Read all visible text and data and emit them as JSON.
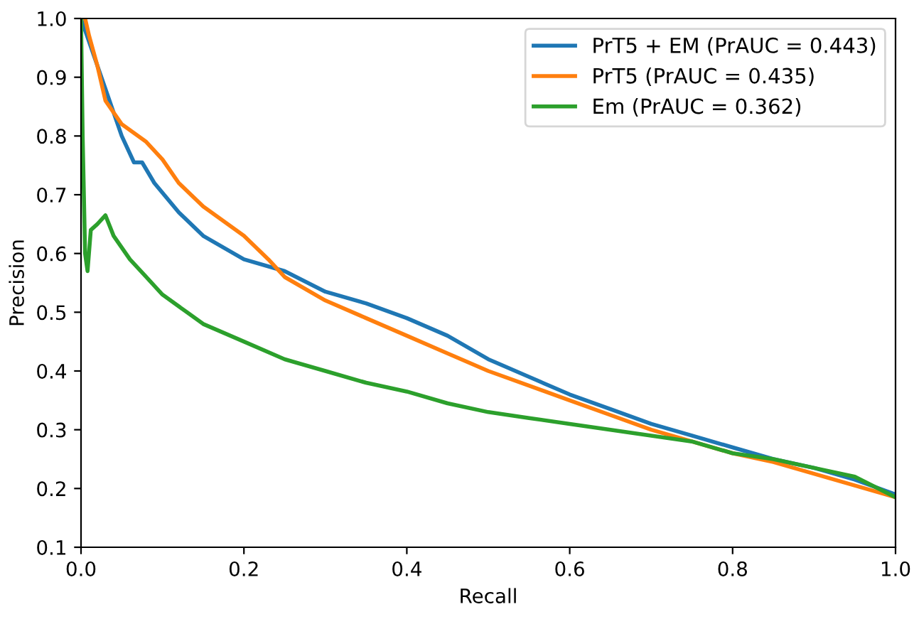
{
  "chart_data": {
    "type": "line",
    "xlabel": "Recall",
    "ylabel": "Precision",
    "xlim": [
      0.0,
      1.0
    ],
    "ylim": [
      0.1,
      1.0
    ],
    "xticks": [
      {
        "value": 0,
        "label": "0.0"
      },
      0.2,
      0.4,
      0.6,
      0.8,
      {
        "value": 1,
        "label": "1.0"
      }
    ],
    "yticks": [
      0.1,
      0.2,
      0.3,
      0.4,
      0.5,
      0.6,
      0.7,
      0.8,
      0.9,
      {
        "value": 1,
        "label": "1.0"
      }
    ],
    "legend": "top right",
    "grid": false,
    "series": [
      {
        "name": "PrT5 + EM (PrAUC = 0.443)",
        "color": "#1f77b4",
        "x": [
          0,
          0.01,
          0.03,
          0.05,
          0.065,
          0.075,
          0.09,
          0.12,
          0.15,
          0.2,
          0.25,
          0.3,
          0.35,
          0.4,
          0.45,
          0.5,
          0.55,
          0.6,
          0.65,
          0.7,
          0.75,
          0.8,
          0.85,
          0.9,
          0.95,
          1.0
        ],
        "values": [
          1.0,
          0.96,
          0.88,
          0.8,
          0.755,
          0.755,
          0.72,
          0.67,
          0.63,
          0.59,
          0.57,
          0.535,
          0.515,
          0.49,
          0.46,
          0.42,
          0.39,
          0.36,
          0.335,
          0.31,
          0.29,
          0.27,
          0.25,
          0.235,
          0.215,
          0.19
        ]
      },
      {
        "name": "PrT5 (PrAUC = 0.435)",
        "color": "#ff7f0e",
        "x": [
          0.005,
          0.01,
          0.02,
          0.03,
          0.05,
          0.08,
          0.1,
          0.12,
          0.15,
          0.2,
          0.23,
          0.25,
          0.3,
          0.35,
          0.4,
          0.45,
          0.5,
          0.55,
          0.6,
          0.65,
          0.7,
          0.75,
          0.8,
          0.85,
          0.9,
          0.95,
          1.0
        ],
        "values": [
          1.0,
          0.97,
          0.92,
          0.86,
          0.82,
          0.79,
          0.76,
          0.72,
          0.68,
          0.63,
          0.59,
          0.56,
          0.52,
          0.49,
          0.46,
          0.43,
          0.4,
          0.375,
          0.35,
          0.325,
          0.3,
          0.28,
          0.26,
          0.245,
          0.225,
          0.205,
          0.185
        ]
      },
      {
        "name": "Em (PrAUC = 0.362)",
        "color": "#2ca02c",
        "x": [
          0,
          0.002,
          0.005,
          0.008,
          0.012,
          0.02,
          0.03,
          0.04,
          0.06,
          0.08,
          0.1,
          0.13,
          0.15,
          0.2,
          0.25,
          0.3,
          0.35,
          0.4,
          0.45,
          0.5,
          0.55,
          0.6,
          0.65,
          0.7,
          0.75,
          0.8,
          0.85,
          0.9,
          0.95,
          1.0
        ],
        "values": [
          1.0,
          0.8,
          0.6,
          0.57,
          0.64,
          0.65,
          0.665,
          0.63,
          0.59,
          0.56,
          0.53,
          0.5,
          0.48,
          0.45,
          0.42,
          0.4,
          0.38,
          0.365,
          0.345,
          0.33,
          0.32,
          0.31,
          0.3,
          0.29,
          0.28,
          0.26,
          0.25,
          0.235,
          0.22,
          0.185
        ]
      }
    ]
  }
}
